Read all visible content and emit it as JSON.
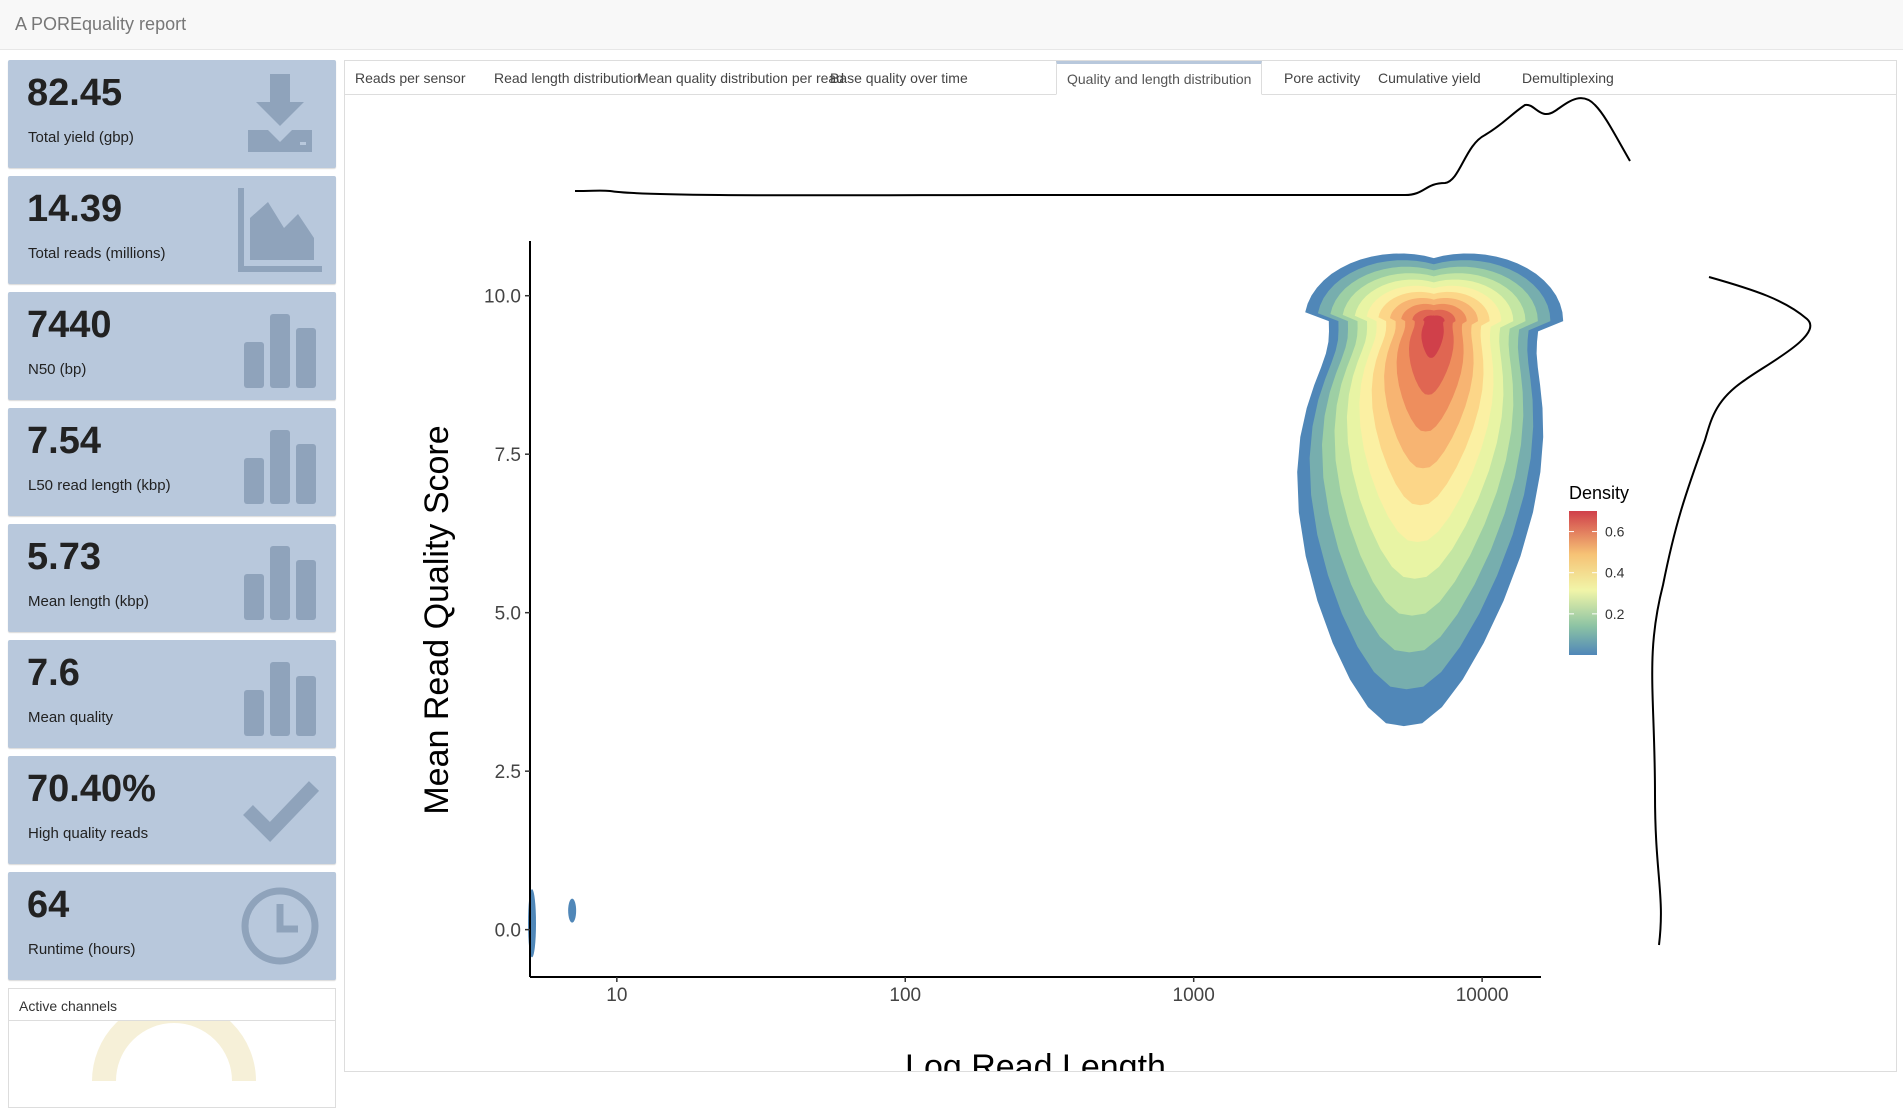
{
  "app": {
    "title": "A POREquality report"
  },
  "value_boxes": [
    {
      "value": "82.45",
      "label": "Total yield (gbp)",
      "icon": "download-icon"
    },
    {
      "value": "14.39",
      "label": "Total reads (millions)",
      "icon": "area-chart-icon"
    },
    {
      "value": "7440",
      "label": "N50 (bp)",
      "icon": "bar-chart-icon"
    },
    {
      "value": "7.54",
      "label": "L50 read length (kbp)",
      "icon": "bar-chart-icon"
    },
    {
      "value": "5.73",
      "label": "Mean length (kbp)",
      "icon": "bar-chart-icon"
    },
    {
      "value": "7.6",
      "label": "Mean quality",
      "icon": "bar-chart-icon"
    },
    {
      "value": "70.40%",
      "label": "High quality reads",
      "icon": "check-icon"
    },
    {
      "value": "64",
      "label": "Runtime (hours)",
      "icon": "clock-icon"
    }
  ],
  "active_channels": {
    "title": "Active channels"
  },
  "tabs": [
    {
      "label": "Reads per sensor",
      "active": false
    },
    {
      "label": "Read length distribution",
      "active": false
    },
    {
      "label": "Mean quality distribution per read",
      "active": false
    },
    {
      "label": "Base quality over time",
      "active": false
    },
    {
      "label": "Quality and length distribution",
      "active": true
    },
    {
      "label": "Pore activity",
      "active": false
    },
    {
      "label": "Cumulative yield",
      "active": false
    },
    {
      "label": "Demultiplexing",
      "active": false
    }
  ],
  "colors": {
    "box_bg": "#b8c8dc",
    "box_icon": "#8fa3bb",
    "density_low": "#5087b8",
    "density_high": "#d0404a"
  },
  "chart_data": {
    "type": "heatmap",
    "subtype": "2d density contour with marginal density curves",
    "xlabel": "Log Read Length",
    "ylabel": "Mean Read Quality Score",
    "x_scale": "log10",
    "xlim": [
      5,
      16000
    ],
    "ylim": [
      -0.4,
      10.8
    ],
    "x_ticks": [
      "10",
      "100",
      "1000",
      "10000"
    ],
    "x_tick_values": [
      10,
      100,
      1000,
      10000
    ],
    "y_ticks": [
      "0.0",
      "2.5",
      "5.0",
      "7.5",
      "10.0"
    ],
    "y_tick_values": [
      0,
      2.5,
      5,
      7.5,
      10
    ],
    "legend": {
      "title": "Density",
      "ticks": [
        "0.2",
        "0.4",
        "0.6"
      ],
      "tick_values": [
        0.2,
        0.4,
        0.6
      ],
      "range": [
        0,
        0.7
      ],
      "position": "right"
    },
    "density_peak": {
      "x": 6800,
      "y": 9.6,
      "value": 0.68
    },
    "minor_blobs": [
      {
        "x": 5.1,
        "y": 0.1
      },
      {
        "x": 7,
        "y": 0.3
      }
    ],
    "grid": false
  }
}
